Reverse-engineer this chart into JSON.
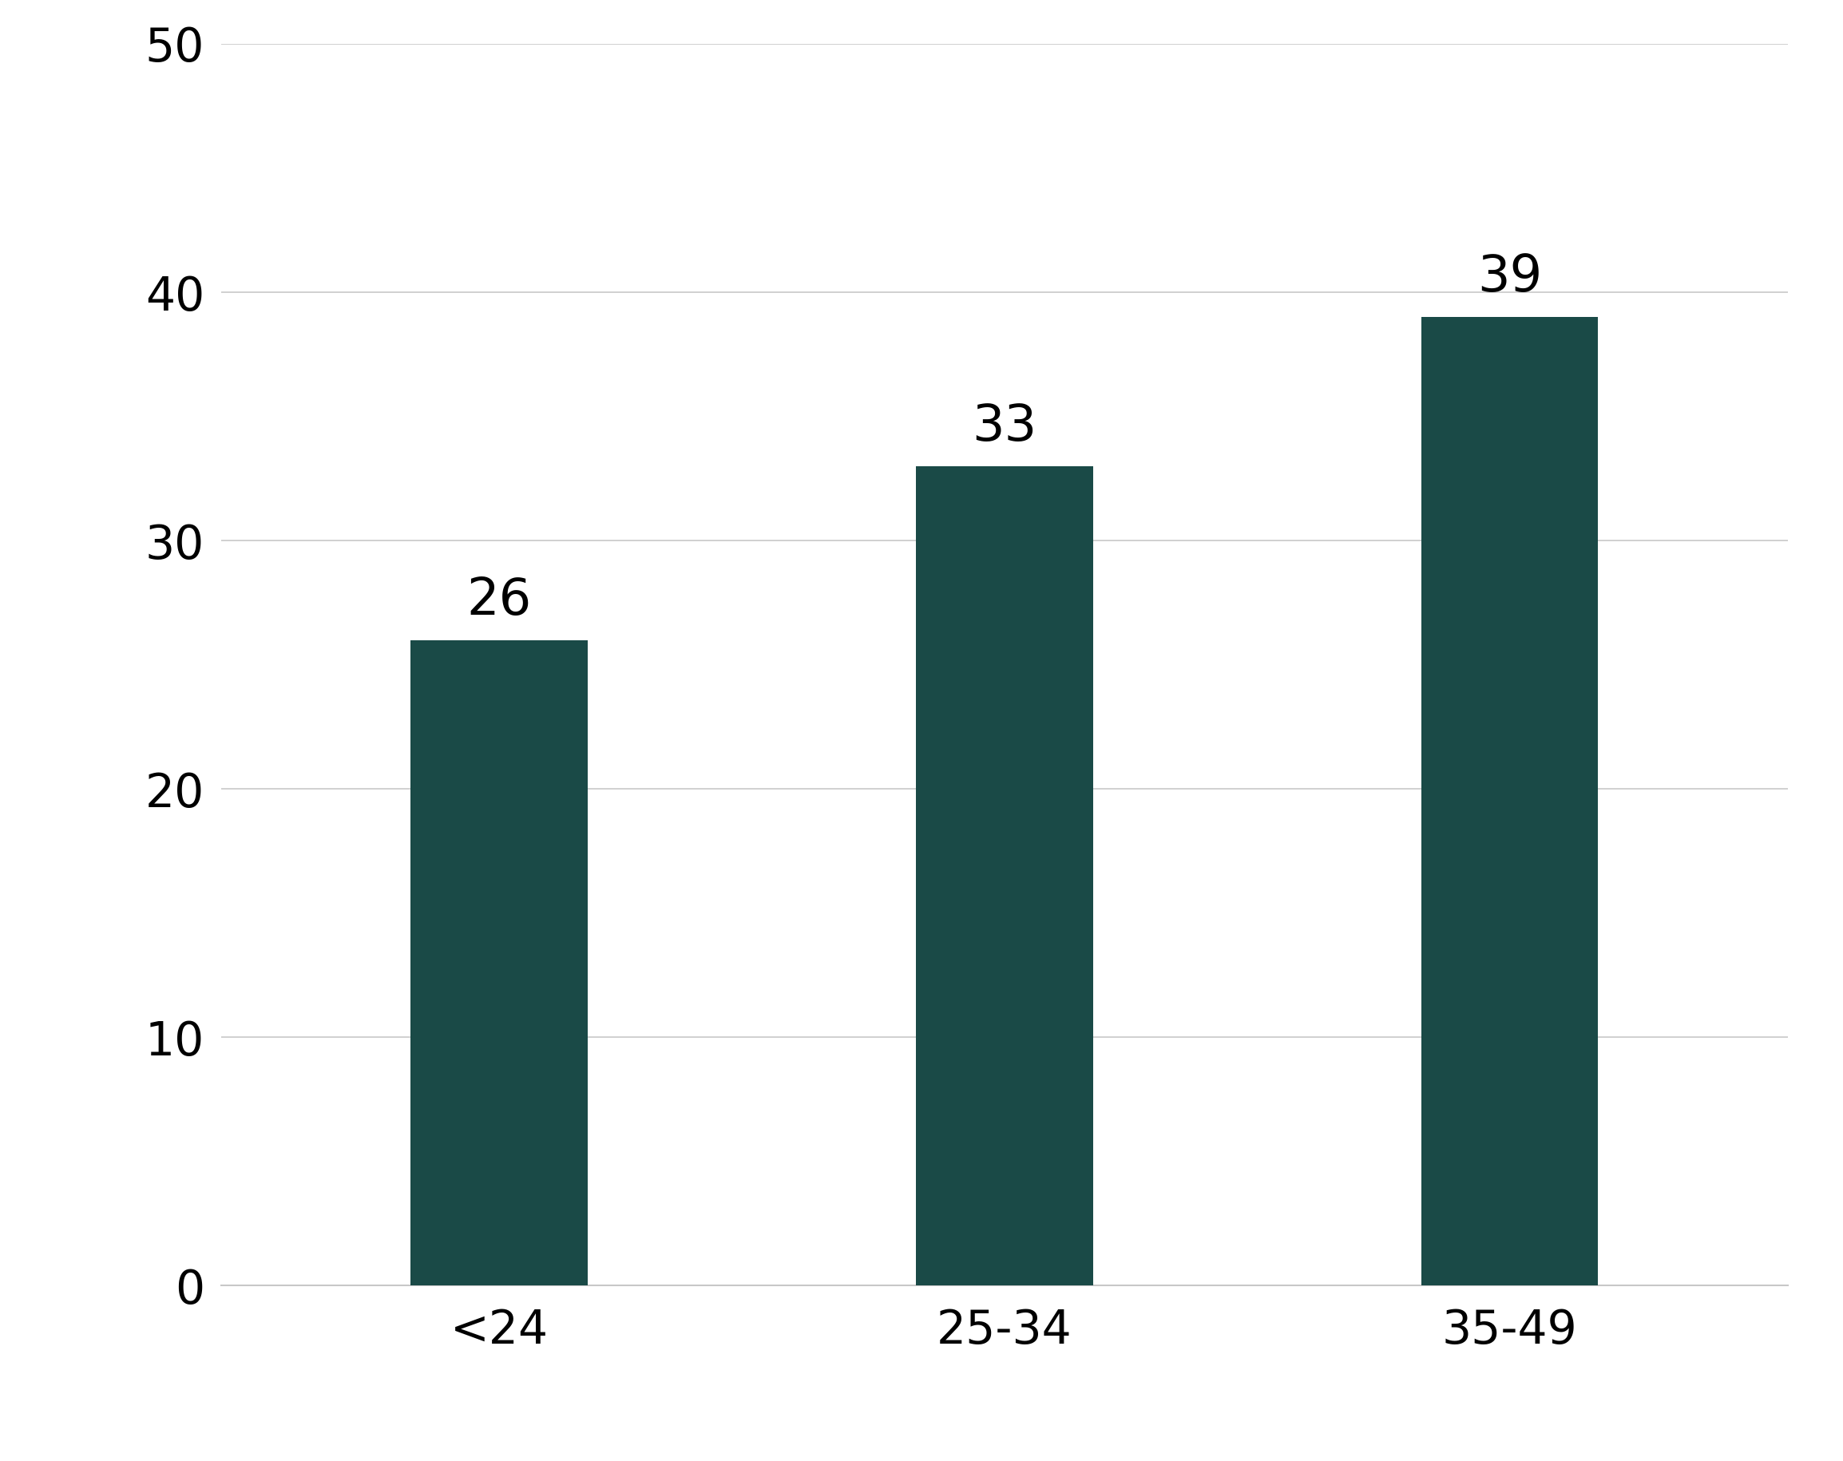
{
  "categories": [
    "<24",
    "25-34",
    "35-49"
  ],
  "values": [
    26,
    33,
    39
  ],
  "bar_color": "#1a4a47",
  "ylim": [
    0,
    50
  ],
  "yticks": [
    0,
    10,
    20,
    30,
    40,
    50
  ],
  "bar_width": 0.35,
  "tick_fontsize": 42,
  "value_label_fontsize": 46,
  "background_color": "#ffffff",
  "grid_color": "#c8c8c8",
  "spine_color": "#c8c8c8"
}
